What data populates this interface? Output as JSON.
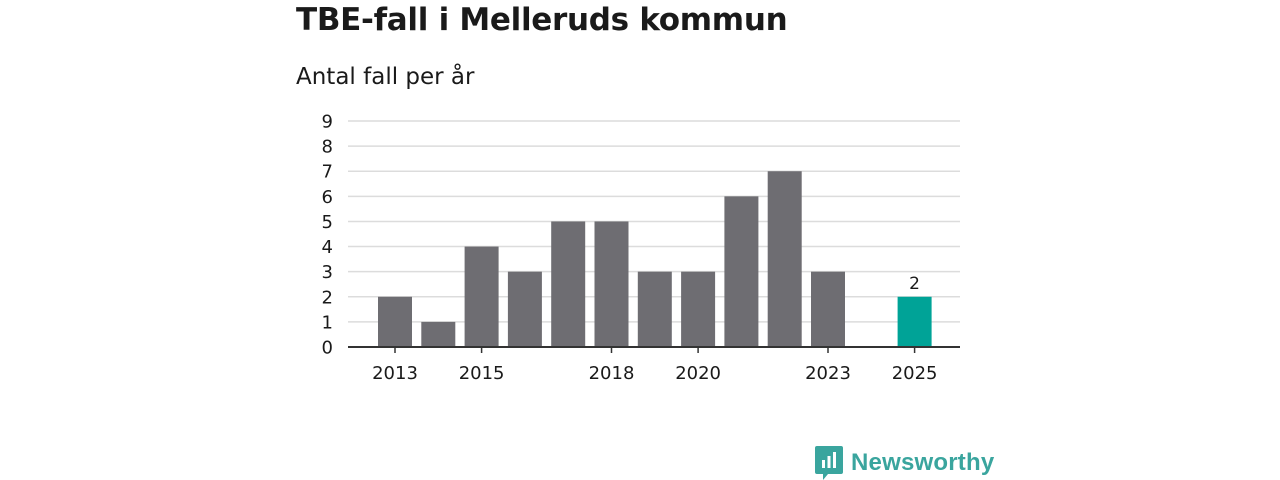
{
  "page": {
    "title": "TBE-fall i Melleruds kommun",
    "subtitle": "Antal fall per år",
    "brand": "Newsworthy"
  },
  "colors": {
    "bar": "#6e6d72",
    "highlight": "#00a397",
    "grid": "#dcdcdc",
    "axis": "#333333",
    "brand": "#3aa59e"
  },
  "chart_data": {
    "type": "bar",
    "title": "TBE-fall i Melleruds kommun",
    "subtitle": "Antal fall per år",
    "xlabel": "",
    "ylabel": "",
    "categories": [
      "2013",
      "2014",
      "2015",
      "2016",
      "2017",
      "2018",
      "2019",
      "2020",
      "2021",
      "2022",
      "2023",
      "2024",
      "2025"
    ],
    "values": [
      2,
      1,
      4,
      3,
      5,
      5,
      3,
      3,
      6,
      7,
      3,
      0,
      2
    ],
    "ylim": [
      0,
      9
    ],
    "yticks": [
      0,
      1,
      2,
      3,
      4,
      5,
      6,
      7,
      8,
      9
    ],
    "xtick_labels": [
      "2013",
      "2015",
      "2018",
      "2020",
      "2023",
      "2025"
    ],
    "highlight_category": "2025",
    "data_labels": [
      {
        "category": "2025",
        "text": "2"
      }
    ],
    "grid": true
  }
}
